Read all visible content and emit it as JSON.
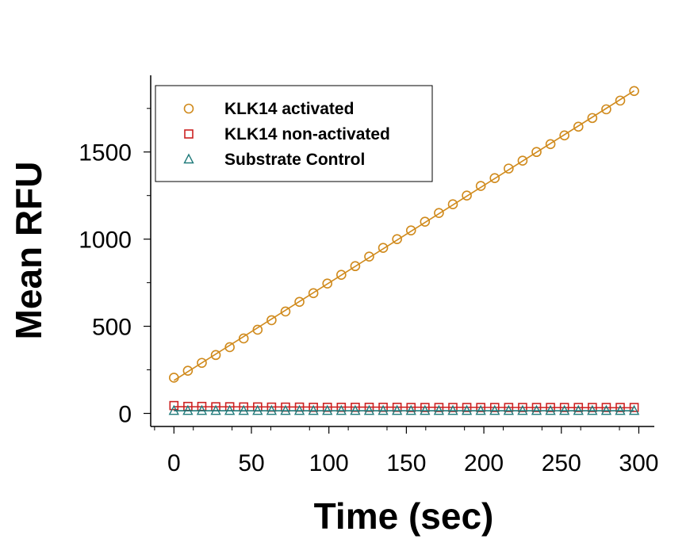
{
  "chart_data": {
    "type": "scatter",
    "title": "",
    "xlabel": "Time (sec)",
    "ylabel": "Mean RFU",
    "xlim": [
      -15,
      310
    ],
    "ylim": [
      -75,
      1940
    ],
    "xticks": [
      0,
      50,
      100,
      150,
      200,
      250,
      300
    ],
    "xtick_labels": [
      "0",
      "50",
      "100",
      "150",
      "200",
      "250",
      "300"
    ],
    "yticks": [
      0,
      500,
      1000,
      1500
    ],
    "ytick_labels": [
      "0",
      "500",
      "1000",
      "1500"
    ],
    "grid": false,
    "legend_position": "top-left",
    "x": [
      0,
      9,
      18,
      27,
      36,
      45,
      54,
      63,
      72,
      81,
      90,
      99,
      108,
      117,
      126,
      135,
      144,
      153,
      162,
      171,
      180,
      189,
      198,
      207,
      216,
      225,
      234,
      243,
      252,
      261,
      270,
      279,
      288,
      297
    ],
    "series": [
      {
        "name": "KLK14 activated",
        "marker": "circle",
        "color": "#d08a1c",
        "fit_line": true,
        "values": [
          205,
          245,
          290,
          335,
          380,
          430,
          480,
          535,
          585,
          640,
          690,
          745,
          795,
          845,
          900,
          950,
          1000,
          1050,
          1100,
          1150,
          1200,
          1250,
          1305,
          1350,
          1405,
          1450,
          1500,
          1545,
          1595,
          1645,
          1695,
          1745,
          1795,
          1850
        ]
      },
      {
        "name": "KLK14 non-activated",
        "marker": "square",
        "color": "#cc2222",
        "fit_line": true,
        "values": [
          45,
          40,
          40,
          38,
          38,
          37,
          37,
          36,
          36,
          36,
          35,
          35,
          35,
          35,
          35,
          35,
          35,
          34,
          34,
          34,
          34,
          34,
          34,
          34,
          34,
          34,
          34,
          34,
          34,
          34,
          34,
          34,
          34,
          34
        ]
      },
      {
        "name": "Substrate Control",
        "marker": "triangle",
        "color": "#1f7a7a",
        "fit_line": true,
        "values": [
          15,
          15,
          15,
          15,
          15,
          15,
          15,
          15,
          15,
          15,
          15,
          15,
          15,
          15,
          15,
          15,
          15,
          15,
          15,
          15,
          15,
          15,
          15,
          15,
          15,
          15,
          15,
          15,
          15,
          15,
          15,
          15,
          15,
          15
        ]
      }
    ]
  }
}
